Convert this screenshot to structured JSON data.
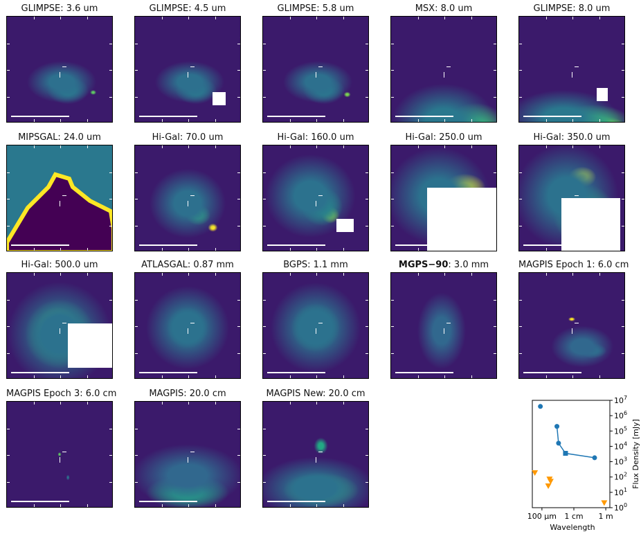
{
  "panels": [
    {
      "survey": "GLIMPSE",
      "band": "3.6 um"
    },
    {
      "survey": "GLIMPSE",
      "band": "4.5 um"
    },
    {
      "survey": "GLIMPSE",
      "band": "5.8 um"
    },
    {
      "survey": "MSX",
      "band": "8.0 um"
    },
    {
      "survey": "GLIMPSE",
      "band": "8.0 um"
    },
    {
      "survey": "MIPSGAL",
      "band": "24.0 um"
    },
    {
      "survey": "Hi-Gal",
      "band": "70.0 um"
    },
    {
      "survey": "Hi-Gal",
      "band": "160.0 um"
    },
    {
      "survey": "Hi-Gal",
      "band": "250.0 um"
    },
    {
      "survey": "Hi-Gal",
      "band": "350.0 um"
    },
    {
      "survey": "Hi-Gal",
      "band": "500.0 um"
    },
    {
      "survey": "ATLASGAL",
      "band": "0.87 mm"
    },
    {
      "survey": "BGPS",
      "band": "1.1 mm"
    },
    {
      "survey": "MGPS−90",
      "band": "3.0 mm",
      "bold": true
    },
    {
      "survey": "MAGPIS Epoch 1",
      "band": "6.0 cm"
    },
    {
      "survey": "MAGPIS Epoch 3",
      "band": "6.0 cm"
    },
    {
      "survey": "MAGPIS",
      "band": "20.0 cm"
    },
    {
      "survey": "MAGPIS New",
      "band": "20.0 cm"
    }
  ],
  "chart_data": {
    "type": "scatter",
    "xlabel": "Wavelength",
    "ylabel": "Flux Density [mJy]",
    "xscale": "log",
    "yscale": "log",
    "xunit": "m",
    "xlim": [
      2.5e-05,
      1.8
    ],
    "ylim": [
      1,
      10000000.0
    ],
    "x_ticks": [
      {
        "value": 0.0001,
        "label": "100 μm"
      },
      {
        "value": 0.01,
        "label": "1 cm"
      },
      {
        "value": 1,
        "label": "1 m"
      }
    ],
    "y_ticks": [
      {
        "value": 1,
        "label": "10",
        "exp": "0"
      },
      {
        "value": 10,
        "label": "10",
        "exp": "1"
      },
      {
        "value": 100,
        "label": "10",
        "exp": "2"
      },
      {
        "value": 1000,
        "label": "10",
        "exp": "3"
      },
      {
        "value": 10000,
        "label": "10",
        "exp": "4"
      },
      {
        "value": 100000,
        "label": "10",
        "exp": "5"
      },
      {
        "value": 1000000,
        "label": "10",
        "exp": "6"
      },
      {
        "value": 10000000,
        "label": "10",
        "exp": "7"
      }
    ],
    "series": [
      {
        "name": "detections (line)",
        "color": "#1f77b4",
        "marker": "circle",
        "connected": true,
        "points": [
          [
            0.00087,
            200000
          ],
          [
            0.0011,
            16000
          ],
          [
            0.003,
            3500
          ],
          [
            0.2,
            1800
          ]
        ]
      },
      {
        "name": "detection (square)",
        "color": "#1f77b4",
        "marker": "square",
        "connected": false,
        "points": [
          [
            0.003,
            3500
          ]
        ]
      },
      {
        "name": "detection (isolated)",
        "color": "#1f77b4",
        "marker": "circle",
        "connected": false,
        "points": [
          [
            8e-05,
            4000000
          ]
        ]
      },
      {
        "name": "upper limits",
        "color": "#ff9900",
        "marker": "triangle-down",
        "connected": false,
        "points": [
          [
            3.6e-05,
            180
          ],
          [
            0.0003,
            70
          ],
          [
            0.00035,
            50
          ],
          [
            0.00025,
            25
          ],
          [
            0.8,
            2
          ]
        ]
      }
    ]
  }
}
